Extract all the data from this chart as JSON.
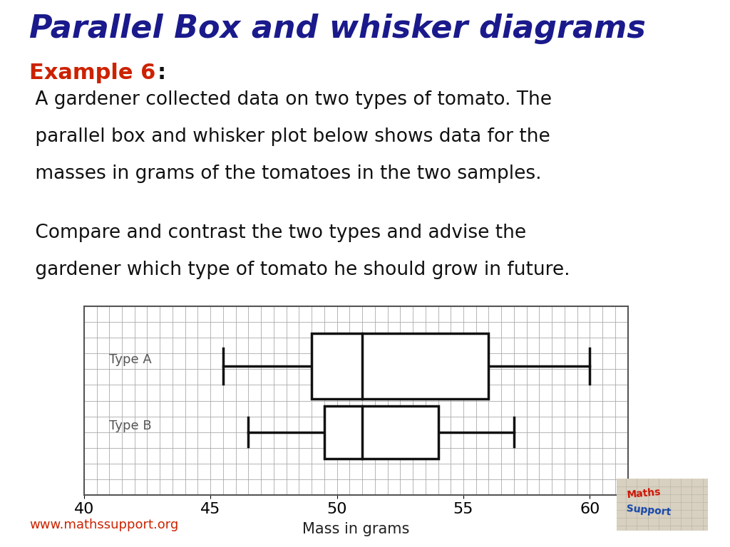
{
  "title": "Parallel Box and whisker diagrams",
  "example_label": "Example 6",
  "example_colon": ":",
  "example_color": "#cc2200",
  "title_color": "#1a1a8c",
  "text1_line1": " A gardener collected data on two types of tomato. The",
  "text1_line2": " parallel box and whisker plot below shows data for the",
  "text1_line3": " masses in grams of the tomatoes in the two samples.",
  "text2_line1": " Compare and contrast the two types and advise the",
  "text2_line2": " gardener which type of tomato he should grow in future.",
  "type_a": {
    "min": 45.5,
    "q1": 49,
    "median": 51,
    "q3": 56,
    "max": 60
  },
  "type_b": {
    "min": 46.5,
    "q1": 49.5,
    "median": 51,
    "q3": 54,
    "max": 57
  },
  "xmin": 40,
  "xmax": 61.5,
  "xlabel": "Mass in grams",
  "xticks": [
    40,
    45,
    50,
    55,
    60
  ],
  "background_color": "#ffffff",
  "grid_color": "#aaaaaa",
  "box_color": "#111111",
  "website": "www.mathssupport.org",
  "website_color": "#cc2200"
}
